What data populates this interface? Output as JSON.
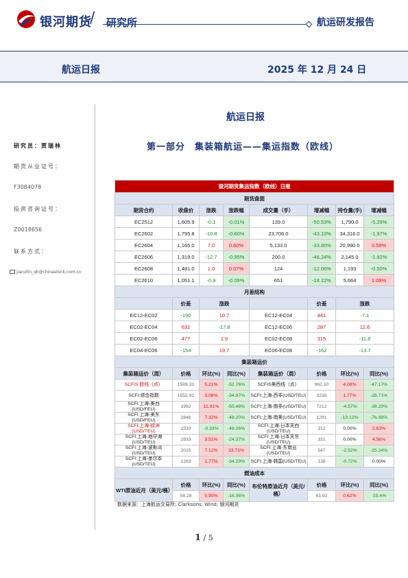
{
  "header": {
    "brand": "银河期货",
    "institute": "研究所",
    "report_type": "航运研发报告",
    "colors": {
      "brand": "#1e3a7b",
      "accent": "#c00000"
    }
  },
  "band": {
    "title": "航运日报",
    "date": "2025 年 12 月 24 日"
  },
  "sidebar": {
    "researcher": "研究员：贾瑞林",
    "futures_license_label": "期货从业证号：",
    "futures_license": "F3084078",
    "invest_license_label": "投资咨询证号：",
    "invest_license": "Z0018656",
    "contact_label": "联系方式：",
    "email": "jiaruilin_qh@chinastock.com.cn"
  },
  "main_title": "航运日报",
  "section_title": "第一部分　集装箱航运——集运指数（欧线）",
  "table": {
    "banner": "银河期货集运指数（欧线）日报",
    "futures_section": "期货盘面",
    "futures_headers": [
      "期货合约",
      "收盘价",
      "涨跌",
      "涨跌幅",
      "成交量（手）",
      "增减幅",
      "持仓量(手)",
      "增减幅"
    ],
    "futures_rows": [
      [
        "EC2512",
        "1,605.9",
        "-0.1",
        "-0.01%",
        "139.0",
        "-50.53%",
        "1,790.0",
        "-5.29%"
      ],
      [
        "EC2602",
        "1,795.8",
        "-10.8",
        "-0.60%",
        "23,706.0",
        "-43.10%",
        "34,316.0",
        "-1.97%"
      ],
      [
        "EC2604",
        "1,165.0",
        "7.0",
        "0.60%",
        "5,133.0",
        "-33.80%",
        "20,990.0",
        "0.59%"
      ],
      [
        "EC2606",
        "1,319.0",
        "-12.7",
        "-0.95%",
        "200.0",
        "-46.24%",
        "2,145.0",
        "-1.92%"
      ],
      [
        "EC2608",
        "1,481.0",
        "1.0",
        "0.07%",
        "124",
        "-12.06%",
        "1,193",
        "-0.50%"
      ],
      [
        "EC2610",
        "1,051.1",
        "-0.9",
        "-0.09%",
        "651",
        "-18.22%",
        "5,664",
        "1.09%"
      ]
    ],
    "spread_section": "月差结构",
    "spread_headers": [
      "",
      "价差",
      "涨跌",
      "",
      "价差",
      "涨跌"
    ],
    "spread_rows": [
      [
        "EC12-EC02",
        "-190",
        "10.7",
        "EC12-EC04",
        "441",
        "-7.1"
      ],
      [
        "EC02-EC04",
        "631",
        "-17.8",
        "EC12-EC06",
        "287",
        "12.6"
      ],
      [
        "EC02-EC06",
        "477",
        "1.9",
        "EC02-EC08",
        "315",
        "-11.8"
      ],
      [
        "EC04-EC06",
        "-154",
        "19.7",
        "EC06-EC08",
        "-162",
        "-13.7"
      ]
    ],
    "spot_section": "集装箱运价",
    "spot_headers": [
      "集装箱运价（周）",
      "价格",
      "环比(%)",
      "同比(%)",
      "集装箱运价（周）",
      "价格",
      "环比(%)",
      "同比(%)"
    ],
    "spot_rows": [
      [
        "SCFIS 欧线（点）",
        "1589.20",
        "5.21%",
        "-52.76%",
        "SCFIS美西线（点）",
        "962.10",
        "4.08%",
        "-47.17%"
      ],
      [
        "SCFI:综合指数",
        "1552.92",
        "3.08%",
        "-34.87%",
        "SCFI:上海-西非(USD/TEU)",
        "3238",
        "1.77%",
        "-28.71%"
      ],
      [
        "SCFI:上海-美西(USD/FEU)",
        "1992",
        "11.91%",
        "-50.48%",
        "SCFI:上海-南非(USD/TEU)",
        "7212",
        "-4.57%",
        "-38.20%"
      ],
      [
        "SCFI:上海-美东(USD/FEU)",
        "2846",
        "7.32%",
        "-48.20%",
        "SCFI:上海-南美(USD/TEU)",
        "1291",
        "-13.12%",
        "-76.98%"
      ],
      [
        "SCFI:上海-欧洲(USD/TEU)",
        "1533",
        "-0.33%",
        "-48.26%",
        "SCFI:上海-日本关西(USD/TEU)",
        "312",
        "0.00%",
        "2.63%"
      ],
      [
        "SCFI:上海-地中海(USD/TEU)",
        "2833",
        "3.51%",
        "-24.37%",
        "SCFI:上海-日本关东(USD/TEU)",
        "321",
        "0.00%",
        "4.56%"
      ],
      [
        "SCFI:上海-波斯湾(USD/TEU)",
        "2015",
        "7.12%",
        "33.71%",
        "SCFI:上海-东南亚(USD/TEU)",
        "547",
        "-2.52%",
        "-25.24%"
      ],
      [
        "SCFI:上海-墨尔本(USD/TEU)",
        "1263",
        "1.77%",
        "-34.29%",
        "SCFI:上海-韩国(USD/TEU)",
        "138",
        "-0.72%",
        "0.00%"
      ]
    ],
    "fuel_section": "燃油成本",
    "fuel_headers": [
      "WTI原油近月（美元/桶）",
      "价格",
      "环比(%)",
      "同比(%)",
      "布伦特原油近月（美元/桶）",
      "价格",
      "环比(%)",
      "同比(%)"
    ],
    "fuel_row": [
      "",
      "58.28",
      "0.90%",
      "-16.36%",
      "",
      "61.92",
      "0.62%",
      "-15.4%"
    ]
  },
  "source": "数据来源：上海航运交易所; Clarksons; Wind; 银河期货",
  "pager": {
    "current": "1",
    "sep": "/",
    "total": "5"
  }
}
